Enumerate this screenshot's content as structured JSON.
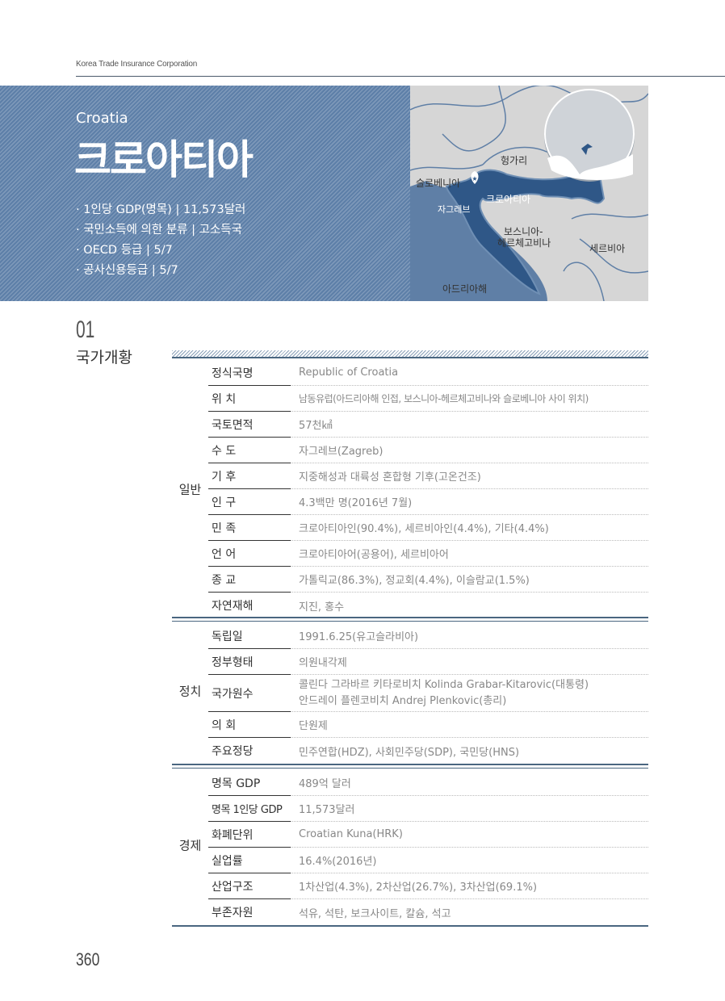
{
  "header": {
    "organization": "Korea Trade Insurance Corporation"
  },
  "hero": {
    "country_en": "Croatia",
    "country_ko": "크로아티아",
    "facts": [
      "· 1인당 GDP(명목)  |  11,573달러",
      "· 국민소득에 의한 분류  |  고소득국",
      "· OECD 등급  |  5/7",
      "· 공사신용등급  |  5/7"
    ]
  },
  "map": {
    "labels": {
      "hungary": "헝가리",
      "slovenia": "슬로베니아",
      "croatia": "크로아티아",
      "zagreb": "자그레브",
      "bosnia_1": "보스니아-",
      "bosnia_2": "헤르체고비나",
      "serbia": "세르비아",
      "adriatic": "아드리아해"
    },
    "colors": {
      "land": "#d6d6d6",
      "croatia": "#2f5787",
      "sea": "#5f7fa6"
    }
  },
  "section": {
    "number": "01",
    "title": "국가개황"
  },
  "groups": [
    {
      "label": "일반",
      "rows": [
        {
          "key": "정식국명",
          "value": "Republic of Croatia"
        },
        {
          "key": "위 치",
          "value": "남동유럽(아드리아해 인접, 보스니아-헤르체고비나와 슬로베니아 사이 위치)"
        },
        {
          "key": "국토면적",
          "value": "57천㎢"
        },
        {
          "key": "수 도",
          "value": "자그레브(Zagreb)"
        },
        {
          "key": "기 후",
          "value": "지중해성과 대륙성 혼합형 기후(고온건조)"
        },
        {
          "key": "인 구",
          "value": "4.3백만 명(2016년 7월)"
        },
        {
          "key": "민 족",
          "value": "크로아티아인(90.4%), 세르비아인(4.4%), 기타(4.4%)"
        },
        {
          "key": "언 어",
          "value": "크로아티아어(공용어), 세르비아어"
        },
        {
          "key": "종 교",
          "value": "가톨릭교(86.3%), 정교회(4.4%), 이슬람교(1.5%)"
        },
        {
          "key": "자연재해",
          "value": "지진, 홍수"
        }
      ]
    },
    {
      "label": "정치",
      "rows": [
        {
          "key": "독립일",
          "value": "1991.6.25(유고슬라비아)"
        },
        {
          "key": "정부형태",
          "value": "의원내각제"
        },
        {
          "key": "국가원수",
          "value": "콜린다 그라바르 키타로비치 Kolinda Grabar-Kitarovic(대통령)",
          "value2": "안드레이 플렌코비치 Andrej Plenkovic(총리)"
        },
        {
          "key": "의 회",
          "value": "단원제"
        },
        {
          "key": "주요정당",
          "value": "민주연합(HDZ), 사회민주당(SDP), 국민당(HNS)"
        }
      ]
    },
    {
      "label": "경제",
      "rows": [
        {
          "key": "명목 GDP",
          "value": "489억 달러"
        },
        {
          "key": "명목 1인당 GDP",
          "value": "11,573달러"
        },
        {
          "key": "화폐단위",
          "value": "Croatian Kuna(HRK)"
        },
        {
          "key": "실업률",
          "value": "16.4%(2016년)"
        },
        {
          "key": "산업구조",
          "value": "1차산업(4.3%), 2차산업(26.7%), 3차산업(69.1%)"
        },
        {
          "key": "부존자원",
          "value": "석유, 석탄, 보크사이트, 칼슘, 석고"
        }
      ]
    }
  ],
  "footer": {
    "page_number": "360"
  }
}
